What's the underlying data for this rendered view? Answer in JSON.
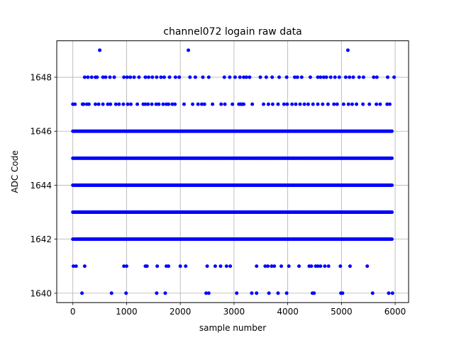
{
  "chart_data": {
    "type": "scatter",
    "title": "channel072 logain raw data",
    "xlabel": "sample number",
    "ylabel": "ADC Code",
    "xlim": [
      -300,
      6250
    ],
    "ylim": [
      1639.65,
      1649.35
    ],
    "xticks": [
      0,
      1000,
      2000,
      3000,
      4000,
      5000,
      6000
    ],
    "yticks": [
      1640,
      1642,
      1644,
      1646,
      1648
    ],
    "grid": true,
    "marker_color": "#0000ff",
    "series": [
      {
        "dense_rows": [
          1642,
          1643,
          1644,
          1645,
          1646
        ],
        "sample_range": [
          0,
          5940
        ],
        "sparse_points": {
          "1649": [
            500,
            2150,
            5120
          ],
          "1648": [
            220,
            280,
            350,
            420,
            450,
            560,
            610,
            690,
            770,
            950,
            1010,
            1070,
            1140,
            1230,
            1350,
            1410,
            1480,
            1560,
            1640,
            1700,
            1800,
            1910,
            1980,
            2180,
            2280,
            2420,
            2530,
            2820,
            2920,
            3020,
            3110,
            3180,
            3230,
            3290,
            3490,
            3600,
            3710,
            3840,
            3980,
            4130,
            4180,
            4260,
            4420,
            4560,
            4610,
            4670,
            4720,
            4800,
            4880,
            4960,
            5080,
            5150,
            5220,
            5330,
            5410,
            5600,
            5660,
            5860,
            5980
          ],
          "1647": [
            0,
            40,
            180,
            200,
            260,
            300,
            420,
            480,
            560,
            650,
            700,
            800,
            860,
            940,
            1020,
            1080,
            1200,
            1310,
            1350,
            1400,
            1470,
            1550,
            1600,
            1680,
            1740,
            1780,
            1850,
            1900,
            2070,
            2230,
            2330,
            2400,
            2450,
            2600,
            2760,
            2830,
            2970,
            3090,
            3120,
            3150,
            3180,
            3340,
            3550,
            3640,
            3720,
            3820,
            3930,
            3990,
            4080,
            4150,
            4230,
            4310,
            4380,
            4470,
            4560,
            4650,
            4750,
            4860,
            4920,
            5040,
            5130,
            5200,
            5280,
            5400,
            5520,
            5650,
            5720,
            5850,
            5900
          ],
          "1641": [
            10,
            60,
            220,
            950,
            1000,
            1350,
            1380,
            1570,
            1740,
            1780,
            2000,
            2100,
            2500,
            2650,
            2750,
            2860,
            2930,
            3420,
            3580,
            3630,
            3700,
            3750,
            3880,
            4020,
            4210,
            4400,
            4440,
            4520,
            4560,
            4610,
            4690,
            4760,
            4980,
            5160,
            5480
          ],
          "1640": [
            170,
            720,
            990,
            1560,
            1720,
            2480,
            2530,
            3050,
            3330,
            3420,
            3650,
            3820,
            3980,
            4460,
            4490,
            4990,
            5020,
            5580,
            5880,
            5950
          ]
        }
      }
    ]
  }
}
